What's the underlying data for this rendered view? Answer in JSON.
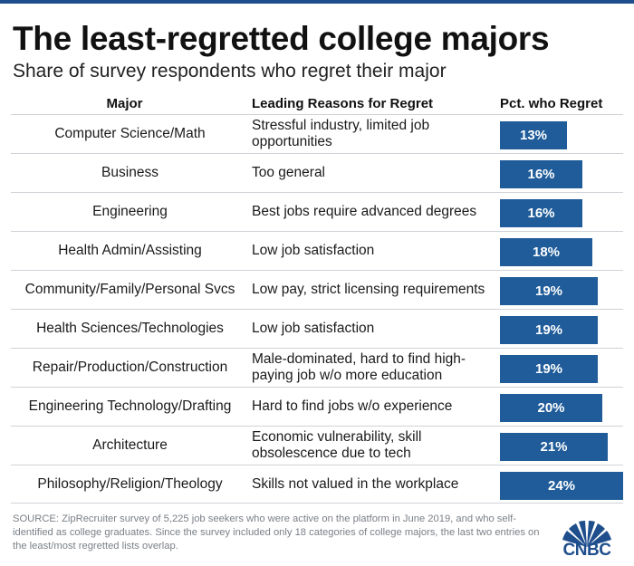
{
  "title": "The least-regretted college majors",
  "subtitle": "Share of survey respondents who regret their major",
  "headers": {
    "major": "Major",
    "reasons": "Leading Reasons for Regret",
    "pct": "Pct. who Regret"
  },
  "chart_data": {
    "type": "bar",
    "title": "The least-regretted college majors",
    "subtitle": "Share of survey respondents who regret their major",
    "xlabel": "",
    "ylabel": "Pct. who Regret",
    "ylim": [
      0,
      24
    ],
    "categories": [
      "Computer Science/Math",
      "Business",
      "Engineering",
      "Health Admin/Assisting",
      "Community/Family/Personal Svcs",
      "Health Sciences/Technologies",
      "Repair/Production/Construction",
      "Engineering Technology/Drafting",
      "Architecture",
      "Philosophy/Religion/Theology"
    ],
    "values": [
      13,
      16,
      16,
      18,
      19,
      19,
      19,
      20,
      21,
      24
    ],
    "value_labels": [
      "13%",
      "16%",
      "16%",
      "18%",
      "19%",
      "19%",
      "19%",
      "20%",
      "21%",
      "24%"
    ],
    "reasons": [
      "Stressful industry, limited job opportunities",
      "Too general",
      "Best jobs require advanced degrees",
      "Low job satisfaction",
      "Low pay, strict licensing requirements",
      "Low job satisfaction",
      "Male-dominated, hard to find high-paying job w/o more education",
      "Hard to find jobs w/o experience",
      "Economic vulnerability, skill obsolescence due to tech",
      "Skills not valued in the workplace"
    ],
    "colors": {
      "bar": "#1f5c99",
      "label": "#ffffff"
    }
  },
  "source": "SOURCE: ZipRecruiter survey of 5,225 job seekers who were active on the platform in June 2019, and who self-identified as college graduates. Since the survey included only 18 categories of college majors, the last two entries on the least/most regretted lists overlap.",
  "logo": {
    "text": "CNBC",
    "icon": "peacock-icon"
  }
}
